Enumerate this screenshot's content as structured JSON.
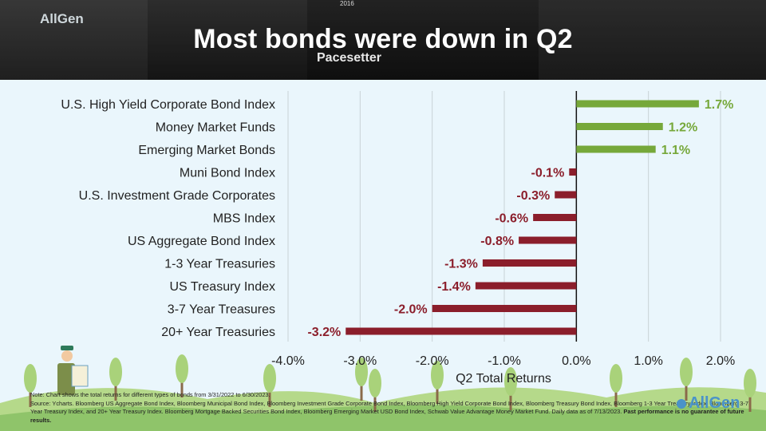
{
  "header": {
    "title": "Most bonds were down in Q2"
  },
  "banner": {
    "logo_text": "AllGen",
    "pacesetter_text": "Pacesetter",
    "year_text": "2016"
  },
  "colors": {
    "positive": "#76a83a",
    "negative": "#8b1e2b",
    "title": "#ffffff",
    "axis": "#222222"
  },
  "chart_data": {
    "type": "bar",
    "orientation": "horizontal",
    "categories": [
      "U.S. High Yield Corporate Bond Index",
      "Money Market Funds",
      "Emerging Market Bonds",
      "Muni Bond Index",
      "U.S. Investment Grade Corporates",
      "MBS Index",
      "US Aggregate Bond Index",
      "1-3 Year Treasuries",
      "US Treasury Index",
      "3-7 Year Treasures",
      "20+ Year Treasuries"
    ],
    "values": [
      1.7,
      1.2,
      1.1,
      -0.1,
      -0.3,
      -0.6,
      -0.8,
      -1.3,
      -1.4,
      -2.0,
      -3.2
    ],
    "data_labels": [
      "1.7%",
      "1.2%",
      "1.1%",
      "-0.1%",
      "-0.3%",
      "-0.6%",
      "-0.8%",
      "-1.3%",
      "-1.4%",
      "-2.0%",
      "-3.2%"
    ],
    "xlim": [
      -4.0,
      2.0
    ],
    "xticks": [
      -4.0,
      -3.0,
      -2.0,
      -1.0,
      0.0,
      1.0,
      2.0
    ],
    "xtick_labels": [
      "-4.0%",
      "-3.0%",
      "-2.0%",
      "-1.0%",
      "0.0%",
      "1.0%",
      "2.0%"
    ],
    "xlabel": "Q2 Total Returns",
    "grid": "vertical"
  },
  "footer": {
    "note": "Note: Chart shows the total returns for different types of bonds from 3/31/2022 to 6/30/2023.",
    "source": "Source: Ycharts. Bloomberg US Aggregate Bond Index, Bloomberg Municipal Bond Index, Bloomberg Investment Grade Corporate Bond Index, Bloomberg High Yield Corporate Bond Index, Bloomberg Treasury Bond Index, Bloomberg 1-3 Year Treasury Index, Bloomberg 3-7 Year Treasury Index, and 20+ Year Treasury Index. Bloomberg Mortgage Backed Securities Bond Index, Bloomberg Emerging Market USD Bond Index, Schwab Value Advantage Money Market Fund. Daily data as of 7/13/2023.",
    "disclaimer": "Past performance is no guarantee of future results.",
    "logo_text": "AllGen"
  }
}
